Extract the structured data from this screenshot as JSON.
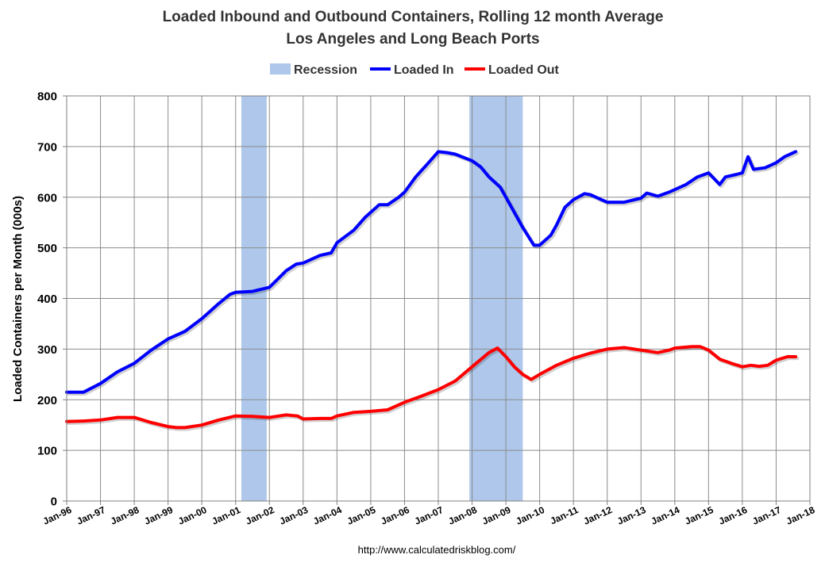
{
  "chart_data": {
    "type": "line",
    "title": "Loaded Inbound and Outbound Containers, Rolling 12 month Average",
    "subtitle": "Los Angeles and Long Beach Ports",
    "ylabel": "Loaded Containers per Month (000s)",
    "xlabel": "",
    "source": "http://www.calculatedriskblog.com/",
    "xlim": [
      1996.0,
      2018.0
    ],
    "ylim": [
      0,
      800
    ],
    "yticks": [
      "0",
      "100",
      "200",
      "300",
      "400",
      "500",
      "600",
      "700",
      "800"
    ],
    "xticks": [
      "Jan-96",
      "Jan-97",
      "Jan-98",
      "Jan-99",
      "Jan-00",
      "Jan-01",
      "Jan-02",
      "Jan-03",
      "Jan-04",
      "Jan-05",
      "Jan-06",
      "Jan-07",
      "Jan-08",
      "Jan-09",
      "Jan-10",
      "Jan-11",
      "Jan-12",
      "Jan-13",
      "Jan-14",
      "Jan-15",
      "Jan-16",
      "Jan-17",
      "Jan-18"
    ],
    "grid": true,
    "legend_position": "top",
    "legend": [
      "Recession",
      "Loaded In",
      "Loaded Out"
    ],
    "recessions": [
      [
        2001.17,
        2001.92
      ],
      [
        2007.92,
        2009.5
      ]
    ],
    "recession_color": "#aec7ea",
    "series": [
      {
        "name": "Loaded In",
        "color": "#0000ff",
        "points": [
          [
            1996.0,
            215
          ],
          [
            1996.5,
            215
          ],
          [
            1997.0,
            232
          ],
          [
            1997.5,
            255
          ],
          [
            1998.0,
            272
          ],
          [
            1998.5,
            298
          ],
          [
            1999.0,
            320
          ],
          [
            1999.5,
            335
          ],
          [
            2000.0,
            360
          ],
          [
            2000.5,
            390
          ],
          [
            2000.83,
            408
          ],
          [
            2001.0,
            412
          ],
          [
            2001.5,
            414
          ],
          [
            2002.0,
            422
          ],
          [
            2002.2,
            435
          ],
          [
            2002.5,
            455
          ],
          [
            2002.8,
            468
          ],
          [
            2003.0,
            470
          ],
          [
            2003.5,
            485
          ],
          [
            2003.83,
            490
          ],
          [
            2004.0,
            510
          ],
          [
            2004.5,
            535
          ],
          [
            2004.83,
            560
          ],
          [
            2005.0,
            570
          ],
          [
            2005.25,
            585
          ],
          [
            2005.5,
            585
          ],
          [
            2005.83,
            600
          ],
          [
            2006.0,
            610
          ],
          [
            2006.33,
            640
          ],
          [
            2006.67,
            665
          ],
          [
            2007.0,
            690
          ],
          [
            2007.25,
            688
          ],
          [
            2007.5,
            685
          ],
          [
            2008.0,
            672
          ],
          [
            2008.25,
            660
          ],
          [
            2008.5,
            640
          ],
          [
            2008.83,
            620
          ],
          [
            2009.0,
            600
          ],
          [
            2009.25,
            570
          ],
          [
            2009.5,
            540
          ],
          [
            2009.83,
            505
          ],
          [
            2010.0,
            505
          ],
          [
            2010.33,
            525
          ],
          [
            2010.5,
            545
          ],
          [
            2010.75,
            580
          ],
          [
            2011.0,
            595
          ],
          [
            2011.33,
            607
          ],
          [
            2011.5,
            605
          ],
          [
            2011.83,
            595
          ],
          [
            2012.0,
            590
          ],
          [
            2012.5,
            590
          ],
          [
            2013.0,
            598
          ],
          [
            2013.17,
            608
          ],
          [
            2013.5,
            602
          ],
          [
            2013.83,
            610
          ],
          [
            2014.0,
            615
          ],
          [
            2014.33,
            625
          ],
          [
            2014.67,
            640
          ],
          [
            2015.0,
            648
          ],
          [
            2015.33,
            625
          ],
          [
            2015.5,
            640
          ],
          [
            2015.83,
            645
          ],
          [
            2016.0,
            648
          ],
          [
            2016.17,
            680
          ],
          [
            2016.33,
            655
          ],
          [
            2016.67,
            658
          ],
          [
            2017.0,
            668
          ],
          [
            2017.25,
            680
          ],
          [
            2017.58,
            690
          ]
        ]
      },
      {
        "name": "Loaded Out",
        "color": "#ff0000",
        "points": [
          [
            1996.0,
            157
          ],
          [
            1996.5,
            158
          ],
          [
            1997.0,
            160
          ],
          [
            1997.5,
            165
          ],
          [
            1998.0,
            165
          ],
          [
            1998.5,
            155
          ],
          [
            1999.0,
            147
          ],
          [
            1999.25,
            145
          ],
          [
            1999.5,
            145
          ],
          [
            2000.0,
            150
          ],
          [
            2000.5,
            160
          ],
          [
            2001.0,
            168
          ],
          [
            2001.5,
            167
          ],
          [
            2002.0,
            165
          ],
          [
            2002.5,
            170
          ],
          [
            2002.83,
            168
          ],
          [
            2003.0,
            162
          ],
          [
            2003.5,
            163
          ],
          [
            2003.83,
            163
          ],
          [
            2004.0,
            168
          ],
          [
            2004.5,
            175
          ],
          [
            2005.0,
            177
          ],
          [
            2005.5,
            180
          ],
          [
            2006.0,
            195
          ],
          [
            2006.5,
            207
          ],
          [
            2007.0,
            220
          ],
          [
            2007.5,
            237
          ],
          [
            2008.0,
            265
          ],
          [
            2008.5,
            293
          ],
          [
            2008.75,
            302
          ],
          [
            2009.0,
            285
          ],
          [
            2009.25,
            265
          ],
          [
            2009.5,
            250
          ],
          [
            2009.75,
            240
          ],
          [
            2010.0,
            250
          ],
          [
            2010.5,
            268
          ],
          [
            2011.0,
            282
          ],
          [
            2011.5,
            292
          ],
          [
            2012.0,
            300
          ],
          [
            2012.5,
            303
          ],
          [
            2013.0,
            298
          ],
          [
            2013.5,
            293
          ],
          [
            2013.83,
            298
          ],
          [
            2014.0,
            302
          ],
          [
            2014.5,
            305
          ],
          [
            2014.75,
            305
          ],
          [
            2015.0,
            298
          ],
          [
            2015.33,
            280
          ],
          [
            2015.67,
            272
          ],
          [
            2016.0,
            265
          ],
          [
            2016.25,
            268
          ],
          [
            2016.5,
            266
          ],
          [
            2016.75,
            268
          ],
          [
            2017.0,
            278
          ],
          [
            2017.33,
            285
          ],
          [
            2017.58,
            285
          ]
        ]
      }
    ]
  }
}
